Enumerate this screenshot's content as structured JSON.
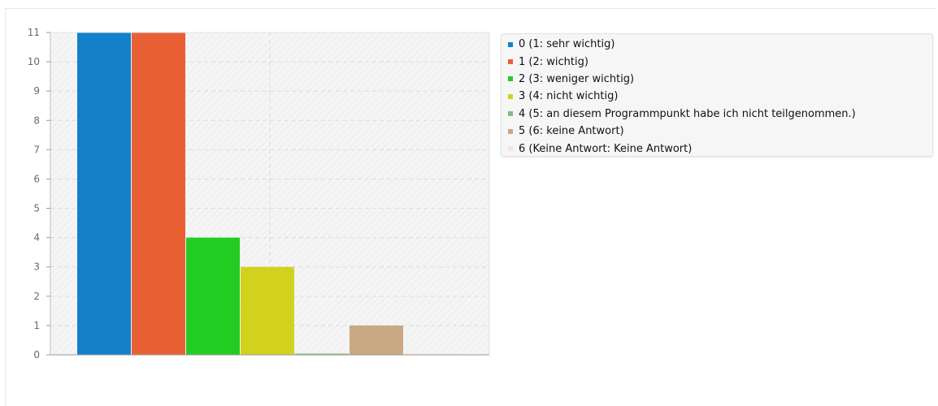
{
  "chart_data": {
    "type": "bar",
    "categories": [
      "0",
      "1",
      "2",
      "3",
      "4",
      "5",
      "6"
    ],
    "values": [
      11,
      11,
      4,
      3,
      0,
      1,
      0
    ],
    "colors": [
      "#1380c9",
      "#e86034",
      "#22cc22",
      "#d2d21e",
      "#86b986",
      "#c8a982",
      "#f7e3da"
    ],
    "legend": [
      "0 (1: sehr wichtig)",
      "1 (2: wichtig)",
      "2 (3: weniger wichtig)",
      "3 (4: nicht wichtig)",
      "4 (5: an diesem Programmpunkt habe ich nicht teilgenommen.)",
      "5 (6: keine Antwort)",
      "6 (Keine Antwort: Keine Antwort)"
    ],
    "yticks": [
      "0",
      "1",
      "2",
      "3",
      "4",
      "5",
      "6",
      "7",
      "8",
      "9",
      "10",
      "11"
    ],
    "ylim": [
      0,
      11
    ],
    "grid": true,
    "legend_position": "right",
    "title": "",
    "xlabel": "",
    "ylabel": ""
  }
}
